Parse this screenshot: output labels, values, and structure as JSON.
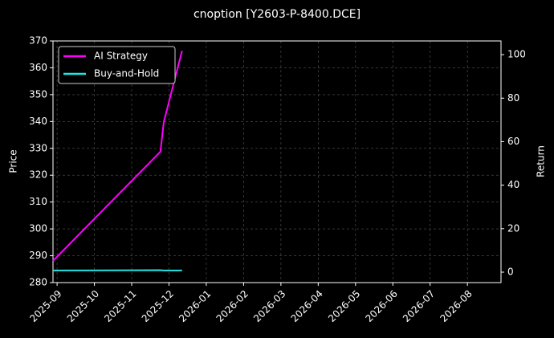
{
  "chart_data": {
    "type": "line",
    "title": "cnoption [Y2603-P-8400.DCE]",
    "ylabel": "Price",
    "y2label": "Return",
    "x": [
      -0.11,
      2.77,
      2.86,
      3.35
    ],
    "xlim": [
      -0.11,
      11.9
    ],
    "xticks": [
      {
        "value": 0,
        "label": "2025-09"
      },
      {
        "value": 1,
        "label": "2025-10"
      },
      {
        "value": 2,
        "label": "2025-11"
      },
      {
        "value": 3,
        "label": "2025-12"
      },
      {
        "value": 4,
        "label": "2026-01"
      },
      {
        "value": 5,
        "label": "2026-02"
      },
      {
        "value": 6,
        "label": "2026-03"
      },
      {
        "value": 7,
        "label": "2026-04"
      },
      {
        "value": 8,
        "label": "2026-05"
      },
      {
        "value": 9,
        "label": "2026-06"
      },
      {
        "value": 10,
        "label": "2026-07"
      },
      {
        "value": 11,
        "label": "2026-08"
      }
    ],
    "ylim": [
      280,
      370
    ],
    "yticks": [
      280,
      290,
      300,
      310,
      320,
      330,
      340,
      350,
      360,
      370
    ],
    "y2lim": [
      -4.8,
      106.3
    ],
    "y2ticks": [
      0,
      20,
      40,
      60,
      80,
      100
    ],
    "grid": true,
    "legend": "upper left",
    "series": [
      {
        "name": "AI Strategy",
        "color": "#ff00ff",
        "axis": "y2",
        "values": [
          5.2,
          55.4,
          69,
          101.8
        ]
      },
      {
        "name": "Buy-and-Hold",
        "color": "#22e5e5",
        "axis": "y2",
        "values": [
          0.8,
          0.9,
          0.8,
          0.8
        ]
      }
    ]
  }
}
